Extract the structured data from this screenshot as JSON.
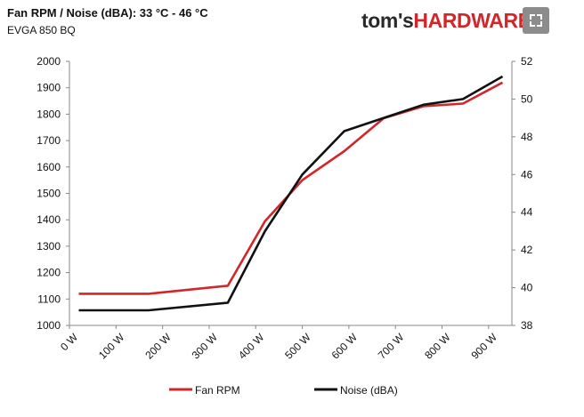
{
  "header": {
    "title": "Fan RPM / Noise (dBA): 33 °C - 46 °C",
    "subtitle": "EVGA 850 BQ",
    "logo_part1": "tom's",
    "logo_part2": "HARDWARE",
    "logo_color": "#d2262a"
  },
  "chart_data": {
    "type": "line",
    "x": [
      "0 W",
      "100 W",
      "200 W",
      "300 W",
      "400 W",
      "500 W",
      "600 W",
      "700 W",
      "800 W",
      "900 W"
    ],
    "series": [
      {
        "name": "Fan RPM",
        "axis": "left",
        "color": "#d2262a",
        "points": [
          [
            20,
            1120
          ],
          [
            170,
            1120
          ],
          [
            340,
            1150
          ],
          [
            420,
            1395
          ],
          [
            500,
            1550
          ],
          [
            590,
            1660
          ],
          [
            675,
            1785
          ],
          [
            760,
            1830
          ],
          [
            845,
            1840
          ],
          [
            930,
            1920
          ]
        ]
      },
      {
        "name": "Noise (dBA)",
        "axis": "right",
        "color": "#111111",
        "points": [
          [
            20,
            38.8
          ],
          [
            170,
            38.8
          ],
          [
            340,
            39.2
          ],
          [
            420,
            43.0
          ],
          [
            500,
            46.0
          ],
          [
            590,
            48.3
          ],
          [
            675,
            49.0
          ],
          [
            760,
            49.7
          ],
          [
            845,
            50.0
          ],
          [
            930,
            51.2
          ]
        ]
      }
    ],
    "xlim": [
      0,
      950
    ],
    "xticks": [
      0,
      100,
      200,
      300,
      400,
      500,
      600,
      700,
      800,
      900
    ],
    "ylim_left": [
      1000,
      2000
    ],
    "yticks_left": [
      1000,
      1100,
      1200,
      1300,
      1400,
      1500,
      1600,
      1700,
      1800,
      1900,
      2000
    ],
    "ylim_right": [
      38,
      52
    ],
    "yticks_right": [
      38,
      40,
      42,
      44,
      46,
      48,
      50,
      52
    ],
    "legend": [
      "Fan RPM",
      "Noise (dBA)"
    ],
    "legend_position": "bottom",
    "grid": false
  }
}
